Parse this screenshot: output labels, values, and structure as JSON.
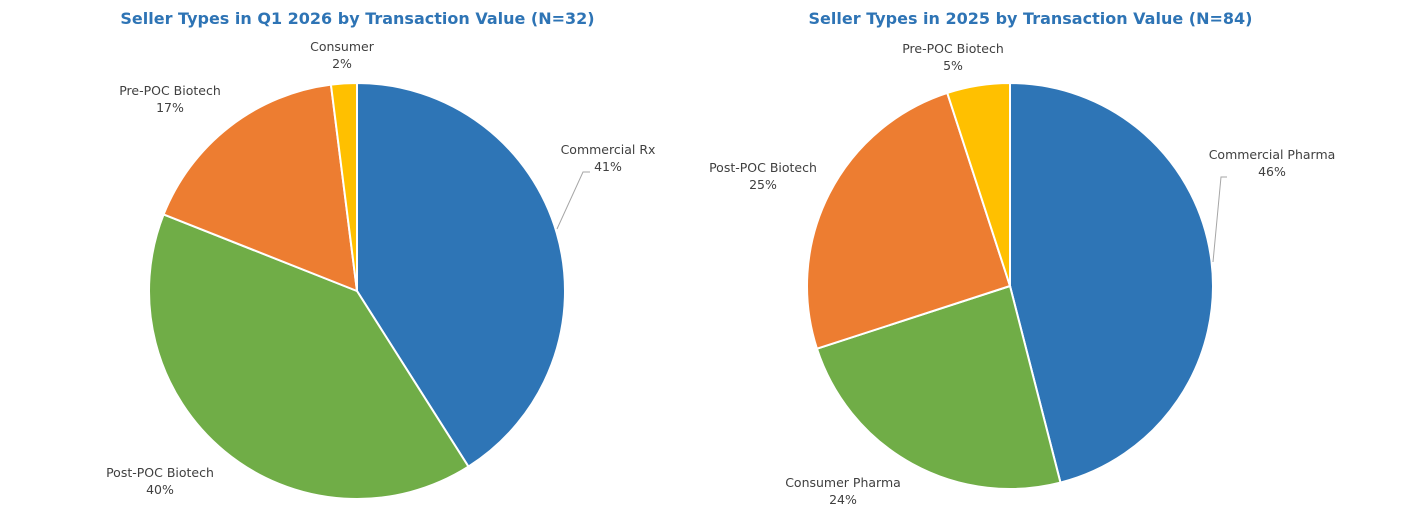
{
  "chart_data": [
    {
      "type": "pie",
      "title": "Seller Types in Q1 2026 by Transaction Value (N=32)",
      "start_angle_deg": 0,
      "direction": "clockwise",
      "slices": [
        {
          "label": "Commercial Rx",
          "value": 41,
          "value_label": "41%",
          "color": "#2E75B6"
        },
        {
          "label": "Post-POC Biotech",
          "value": 40,
          "value_label": "40%",
          "color": "#70AD47"
        },
        {
          "label": "Pre-POC Biotech",
          "value": 17,
          "value_label": "17%",
          "color": "#ED7D31"
        },
        {
          "label": "Consumer",
          "value": 2,
          "value_label": "2%",
          "color": "#FFC000"
        }
      ]
    },
    {
      "type": "pie",
      "title": "Seller Types in 2025 by Transaction Value (N=84)",
      "start_angle_deg": 0,
      "direction": "clockwise",
      "slices": [
        {
          "label": "Commercial Pharma",
          "value": 46,
          "value_label": "46%",
          "color": "#2E75B6"
        },
        {
          "label": "Consumer Pharma",
          "value": 24,
          "value_label": "24%",
          "color": "#70AD47"
        },
        {
          "label": "Post-POC Biotech",
          "value": 25,
          "value_label": "25%",
          "color": "#ED7D31"
        },
        {
          "label": "Pre-POC Biotech",
          "value": 5,
          "value_label": "5%",
          "color": "#FFC000"
        }
      ]
    }
  ]
}
